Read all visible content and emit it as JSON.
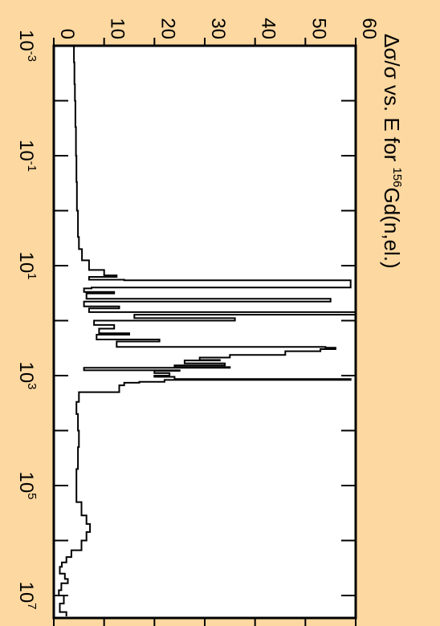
{
  "colors": {
    "background": "#FDD8A0",
    "plot_background": "#FFFFFF",
    "ink": "#000000"
  },
  "chart_data": {
    "type": "line",
    "orientation": "rotated-90-clockwise",
    "title": {
      "prefix": "Δσ/σ vs. E for ",
      "superscript": "156",
      "suffix": "Gd(n,el.)"
    },
    "xlabel": "",
    "ylabel": "",
    "x_scale": "log",
    "xlim": [
      0.001,
      20000000
    ],
    "ylim": [
      0,
      60
    ],
    "x_tick_labels": [
      {
        "base": "10",
        "exp": "-3",
        "value": 0.001
      },
      {
        "base": "10",
        "exp": "-1",
        "value": 0.1
      },
      {
        "base": "10",
        "exp": "1",
        "value": 10
      },
      {
        "base": "10",
        "exp": "3",
        "value": 1000
      },
      {
        "base": "10",
        "exp": "5",
        "value": 100000
      },
      {
        "base": "10",
        "exp": "7",
        "value": 10000000
      }
    ],
    "y_ticks": [
      0,
      10,
      20,
      30,
      40,
      50,
      60
    ],
    "y_tick_labels": [
      "0",
      "10",
      "20",
      "30",
      "40",
      "50",
      "60"
    ],
    "grid": false,
    "legend": "none",
    "series": [
      {
        "step": true,
        "x": [
          0.001,
          0.002,
          0.005,
          0.01,
          0.03,
          0.1,
          0.3,
          1,
          3,
          5,
          8,
          12,
          15,
          16,
          18,
          18.5,
          25,
          26,
          30,
          32,
          40,
          45,
          55,
          60,
          70,
          78,
          90,
          100,
          120,
          140,
          170,
          180,
          220,
          240,
          300,
          310,
          330,
          360,
          420,
          470,
          520,
          530,
          600,
          650,
          700,
          720,
          800,
          820,
          900,
          1000,
          1050,
          1150,
          1200,
          1300,
          1350,
          1500,
          2000,
          3000,
          5000,
          10000,
          20000,
          50000,
          100000,
          200000,
          350000,
          500000,
          700000,
          1000000,
          1500000,
          2000000,
          2500000,
          3000000,
          4000000,
          5000000,
          6000000,
          8000000,
          10000000,
          14000000,
          20000000
        ],
        "y": [
          4.0,
          4.1,
          4.2,
          4.3,
          4.4,
          4.5,
          4.6,
          4.8,
          5.0,
          5.6,
          7.0,
          10.0,
          12.5,
          7.0,
          14.0,
          59.0,
          7.5,
          6.0,
          12.0,
          6.5,
          55.0,
          6.0,
          13.0,
          7.0,
          60.0,
          16.0,
          36.0,
          8.0,
          12.0,
          9.0,
          15.0,
          8.5,
          21.0,
          12.5,
          54.0,
          56.0,
          53.0,
          46.0,
          35.0,
          29.0,
          33.0,
          26.0,
          34.0,
          24.0,
          35.0,
          6.0,
          25.0,
          20.0,
          23.0,
          20.0,
          24.0,
          59.0,
          22.0,
          17.0,
          14.0,
          13.0,
          5.0,
          4.5,
          4.8,
          5.0,
          4.8,
          4.5,
          4.5,
          5.5,
          6.5,
          7.2,
          6.5,
          5.5,
          3.5,
          2.5,
          1.6,
          1.2,
          2.2,
          2.8,
          1.5,
          1.0,
          2.0,
          1.2,
          2.5
        ]
      }
    ]
  }
}
